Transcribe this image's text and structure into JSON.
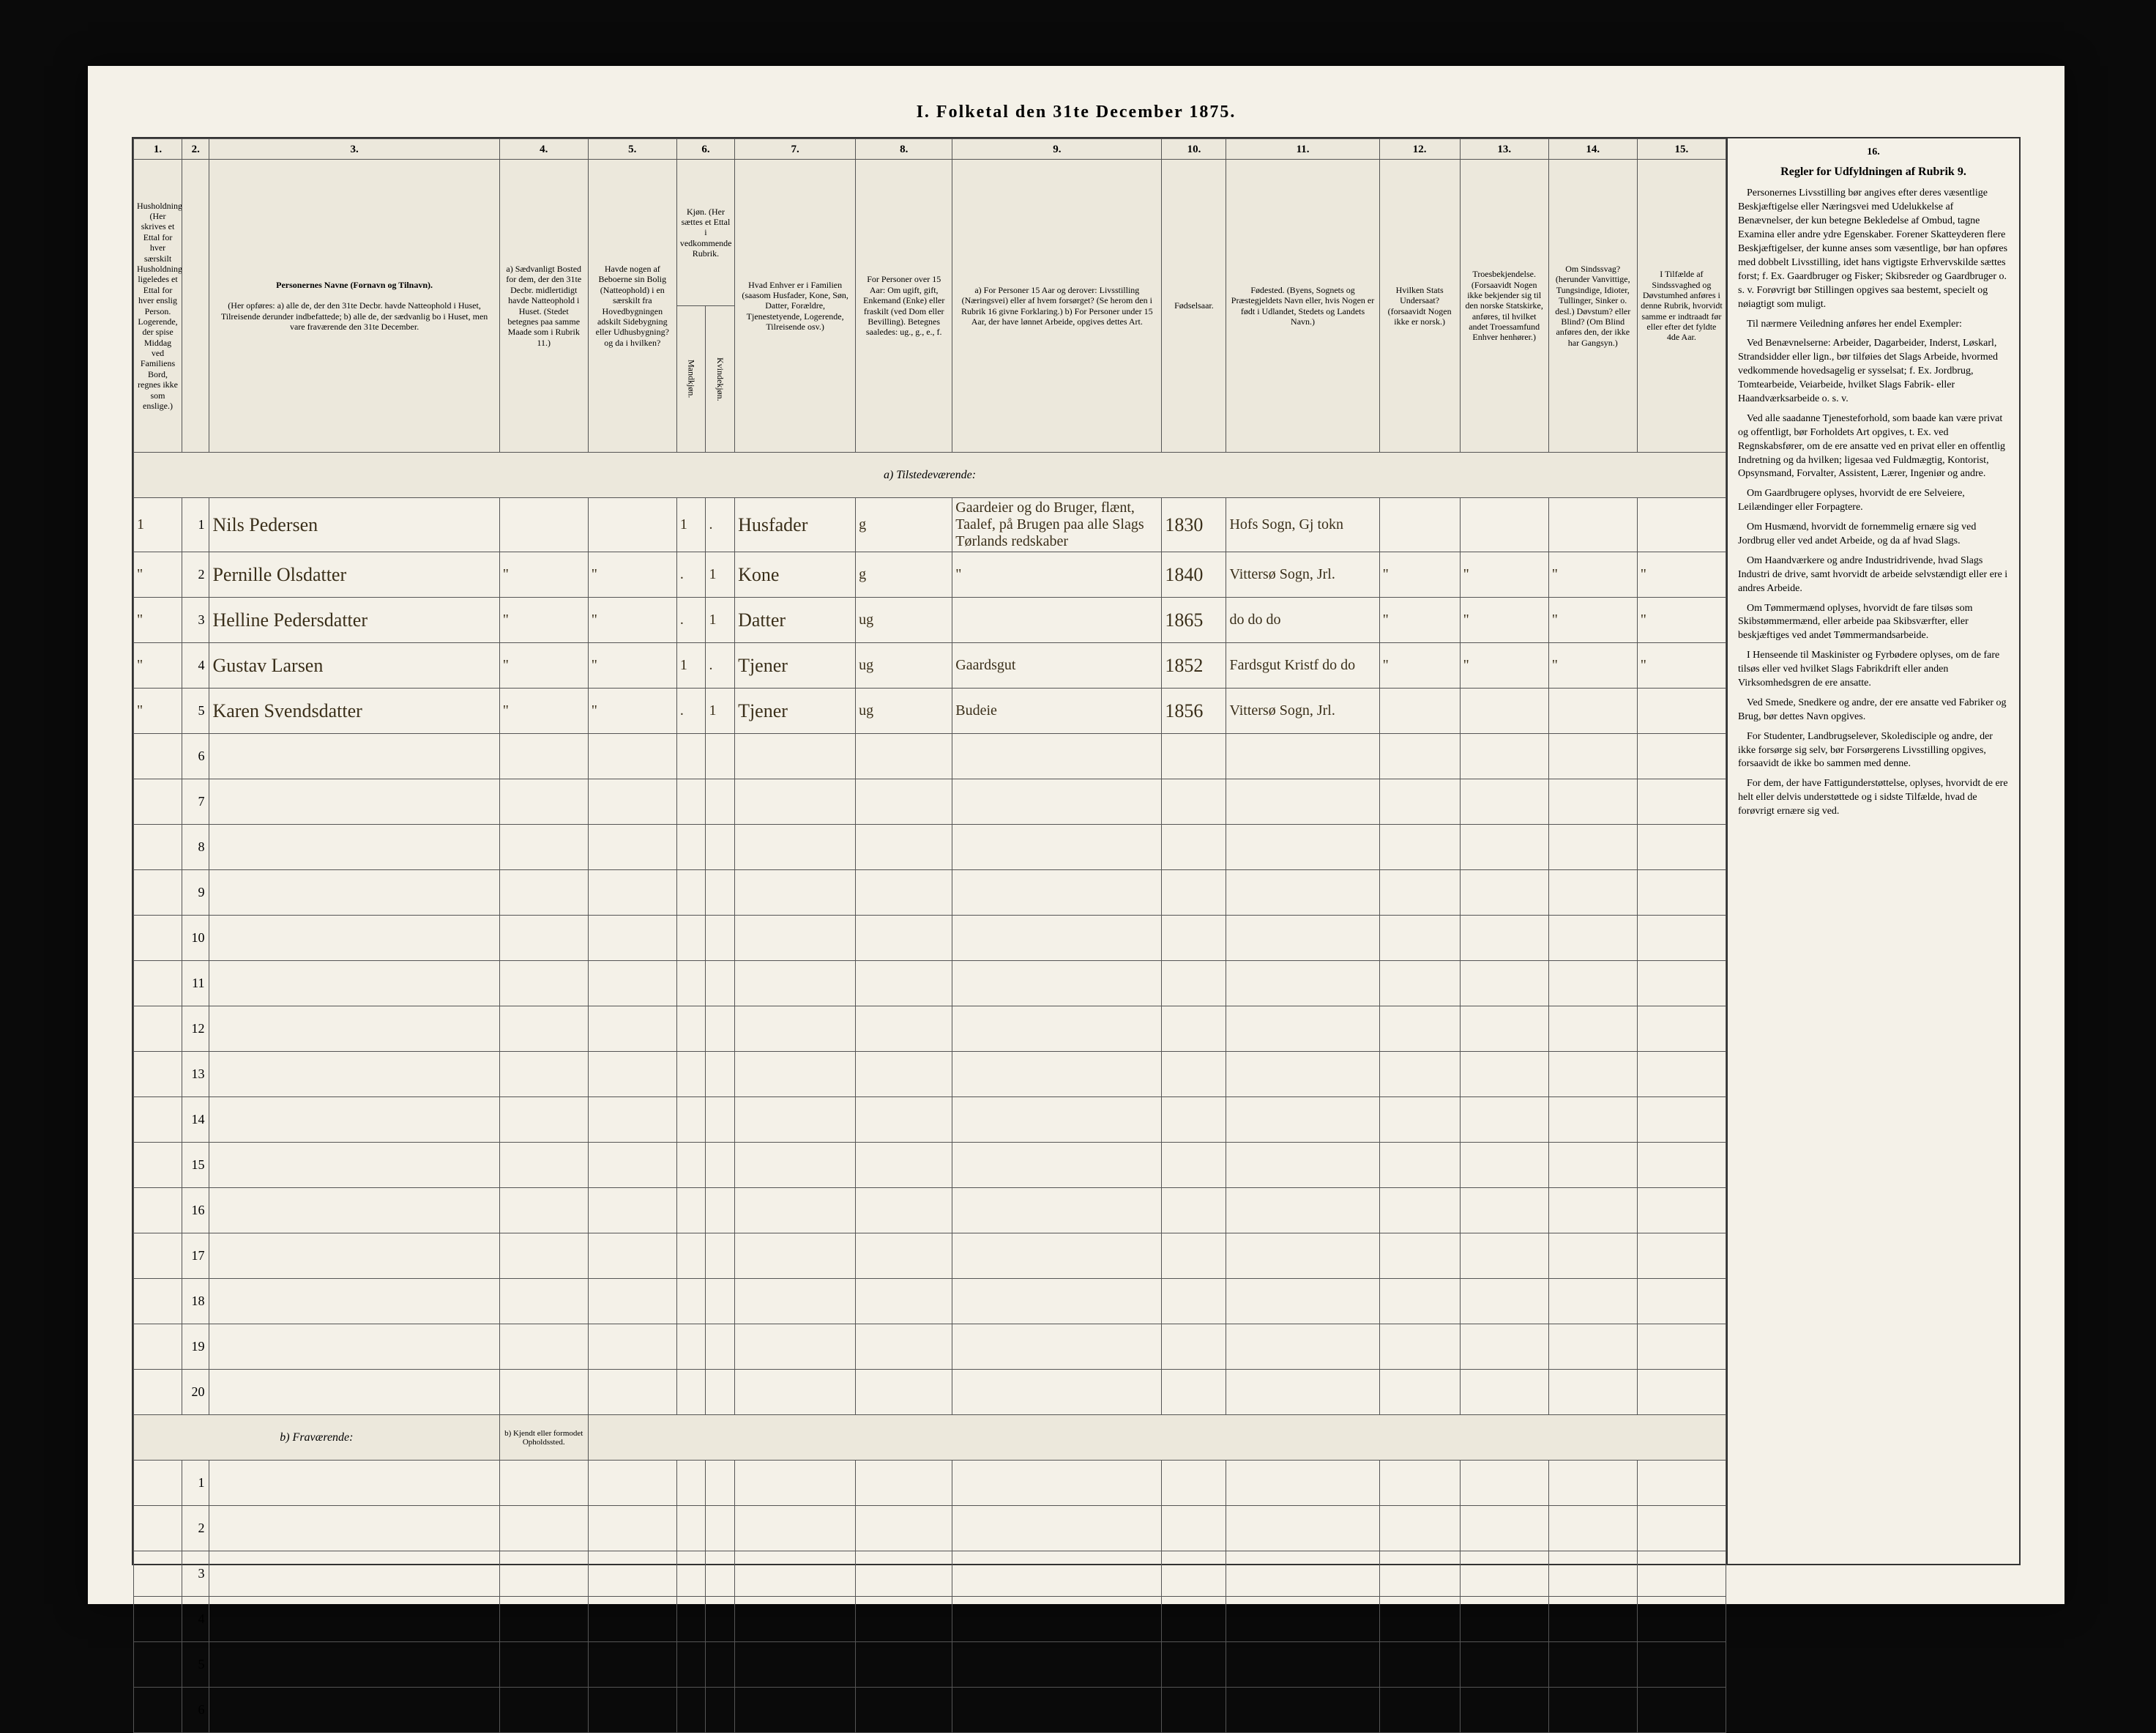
{
  "title": "I. Folketal den 31te December 1875.",
  "columns_numbers": [
    "1.",
    "2.",
    "3.",
    "4.",
    "5.",
    "6.",
    "7.",
    "8.",
    "9.",
    "10.",
    "11.",
    "12.",
    "13.",
    "14.",
    "15.",
    "16."
  ],
  "columns_headers": {
    "c1": "Husholdninger. (Her skrives et Ettal for hver særskilt Husholdning; ligeledes et Ettal for hver enslig Person. Logerende, der spise Middag ved Familiens Bord, regnes ikke som enslige.)",
    "c2": "",
    "c3_title": "Personernes Navne (Fornavn og Tilnavn).",
    "c3_body": "(Her opføres: a) alle de, der den 31te Decbr. havde Natteophold i Huset, Tilreisende derunder indbefattede; b) alle de, der sædvanlig bo i Huset, men vare fraværende den 31te December.",
    "c4": "a) Sædvanligt Bosted for dem, der den 31te Decbr. midlertidigt havde Natteophold i Huset. (Stedet betegnes paa samme Maade som i Rubrik 11.)",
    "c5": "Havde nogen af Beboerne sin Bolig (Natteophold) i en særskilt fra Hovedbygningen adskilt Sidebygning eller Udhusbygning? og da i hvilken?",
    "c6": "Kjøn. (Her sættes et Ettal i vedkommende Rubrik.",
    "c6a": "Mandkjøn.",
    "c6b": "Kvindekjøn.",
    "c7": "Hvad Enhver er i Familien (saasom Husfader, Kone, Søn, Datter, Forældre, Tjenestetyende, Logerende, Tilreisende osv.)",
    "c8": "For Personer over 15 Aar: Om ugift, gift, Enkemand (Enke) eller fraskilt (ved Dom eller Bevilling). Betegnes saaledes: ug., g., e., f.",
    "c9": "a) For Personer 15 Aar og derover: Livsstilling (Næringsvei) eller af hvem forsørget? (Se herom den i Rubrik 16 givne Forklaring.) b) For Personer under 15 Aar, der have lønnet Arbeide, opgives dettes Art.",
    "c10": "Fødselsaar.",
    "c11": "Fødested. (Byens, Sognets og Præstegjeldets Navn eller, hvis Nogen er født i Udlandet, Stedets og Landets Navn.)",
    "c12": "Hvilken Stats Undersaat? (forsaavidt Nogen ikke er norsk.)",
    "c13": "Troesbekjendelse. (Forsaavidt Nogen ikke bekjender sig til den norske Statskirke, anføres, til hvilket andet Troessamfund Enhver henhører.)",
    "c14": "Om Sindssvag? (herunder Vanvittige, Tungsindige, Idioter, Tullinger, Sinker o. desl.) Døvstum? eller Blind? (Om Blind anføres den, der ikke har Gangsyn.)",
    "c15": "I Tilfælde af Sindssvaghed og Døvstumhed anføres i denne Rubrik, hvorvidt samme er indtraadt før eller efter det fyldte 4de Aar."
  },
  "section_a": "a) Tilstedeværende:",
  "section_b": "b) Fraværende:",
  "section_b_col4": "b) Kjendt eller formodet Opholdssted.",
  "rows_a": [
    {
      "hh": "1",
      "n": "1",
      "name": "Nils Pedersen",
      "c4": "",
      "c5": "",
      "c6a": "1",
      "c6b": ".",
      "c7": "Husfader",
      "c8": "g",
      "c9": "Gaardeier og do Bruger, flænt, Taalef, på Brugen paa alle Slags Tørlands redskaber",
      "c10": "1830",
      "c11": "Hofs Sogn, Gj tokn",
      "c12": "",
      "c13": "",
      "c14": "",
      "c15": ""
    },
    {
      "hh": "\"",
      "n": "2",
      "name": "Pernille Olsdatter",
      "c4": "\"",
      "c5": "\"",
      "c6a": ".",
      "c6b": "1",
      "c7": "Kone",
      "c8": "g",
      "c9": "\"",
      "c10": "1840",
      "c11": "Vittersø Sogn, Jrl.",
      "c12": "\"",
      "c13": "\"",
      "c14": "\"",
      "c15": "\""
    },
    {
      "hh": "\"",
      "n": "3",
      "name": "Helline Pedersdatter",
      "c4": "\"",
      "c5": "\"",
      "c6a": ".",
      "c6b": "1",
      "c7": "Datter",
      "c8": "ug",
      "c9": "",
      "c10": "1865",
      "c11": "do  do  do",
      "c12": "\"",
      "c13": "\"",
      "c14": "\"",
      "c15": "\""
    },
    {
      "hh": "\"",
      "n": "4",
      "name": "Gustav Larsen",
      "c4": "\"",
      "c5": "\"",
      "c6a": "1",
      "c6b": ".",
      "c7": "Tjener",
      "c8": "ug",
      "c9": "Gaardsgut",
      "c10": "1852",
      "c11": "Fardsgut Kristf do  do",
      "c12": "\"",
      "c13": "\"",
      "c14": "\"",
      "c15": "\""
    },
    {
      "hh": "\"",
      "n": "5",
      "name": "Karen Svendsdatter",
      "c4": "\"",
      "c5": "\"",
      "c6a": ".",
      "c6b": "1",
      "c7": "Tjener",
      "c8": "ug",
      "c9": "Budeie",
      "c10": "1856",
      "c11": "Vittersø Sogn, Jrl.",
      "c12": "",
      "c13": "",
      "c14": "",
      "c15": ""
    }
  ],
  "empty_a_count": 15,
  "empty_b_count": 6,
  "instructions": {
    "heading": "Regler for Udfyldningen af Rubrik 9.",
    "paras": [
      "Personernes Livsstilling bør angives efter deres væsentlige Beskjæftigelse eller Næringsvei med Udelukkelse af Benævnelser, der kun betegne Bekledelse af Ombud, tagne Examina eller andre ydre Egenskaber. Forener Skatteyderen flere Beskjæftigelser, der kunne anses som væsentlige, bør han opføres med dobbelt Livsstilling, idet hans vigtigste Erhvervskilde sættes forst; f. Ex. Gaardbruger og Fisker; Skibsreder og Gaardbruger o. s. v. Forøvrigt bør Stillingen opgives saa bestemt, specielt og nøiagtigt som muligt.",
      "Til nærmere Veiledning anføres her endel Exempler:",
      "Ved Benævnelserne: Arbeider, Dagarbeider, Inderst, Løskarl, Strandsidder eller lign., bør tilføies det Slags Arbeide, hvormed vedkommende hovedsagelig er sysselsat; f. Ex. Jordbrug, Tomtearbeide, Veiarbeide, hvilket Slags Fabrik- eller Haandværksarbeide o. s. v.",
      "Ved alle saadanne Tjenesteforhold, som baade kan være privat og offentligt, bør Forholdets Art opgives, t. Ex. ved Regnskabsfører, om de ere ansatte ved en privat eller en offentlig Indretning og da hvilken; ligesaa ved Fuldmægtig, Kontorist, Opsynsmand, Forvalter, Assistent, Lærer, Ingeniør og andre.",
      "Om Gaardbrugere oplyses, hvorvidt de ere Selveiere, Leilændinger eller Forpagtere.",
      "Om Husmænd, hvorvidt de fornemmelig ernære sig ved Jordbrug eller ved andet Arbeide, og da af hvad Slags.",
      "Om Haandværkere og andre Industridrivende, hvad Slags Industri de drive, samt hvorvidt de arbeide selvstændigt eller ere i andres Arbeide.",
      "Om Tømmermænd oplyses, hvorvidt de fare tilsøs som Skibstømmermænd, eller arbeide paa Skibsværfter, eller beskjæftiges ved andet Tømmermandsarbeide.",
      "I Henseende til Maskinister og Fyrbødere oplyses, om de fare tilsøs eller ved hvilket Slags Fabrikdrift eller anden Virksomhedsgren de ere ansatte.",
      "Ved Smede, Snedkere og andre, der ere ansatte ved Fabriker og Brug, bør dettes Navn opgives.",
      "For Studenter, Landbrugselever, Skoledisciple og andre, der ikke forsørge sig selv, bør Forsørgerens Livsstilling opgives, forsaavidt de ikke bo sammen med denne.",
      "For dem, der have Fattigunderstøttelse, oplyses, hvorvidt de ere helt eller delvis understøttede og i sidste Tilfælde, hvad de forøvrigt ernære sig ved."
    ]
  },
  "colors": {
    "page_bg": "#f4f1e8",
    "outer_bg": "#0a0a0a",
    "line": "#555555",
    "ink": "#3a2f1a",
    "header_bg": "#ece8dc"
  }
}
